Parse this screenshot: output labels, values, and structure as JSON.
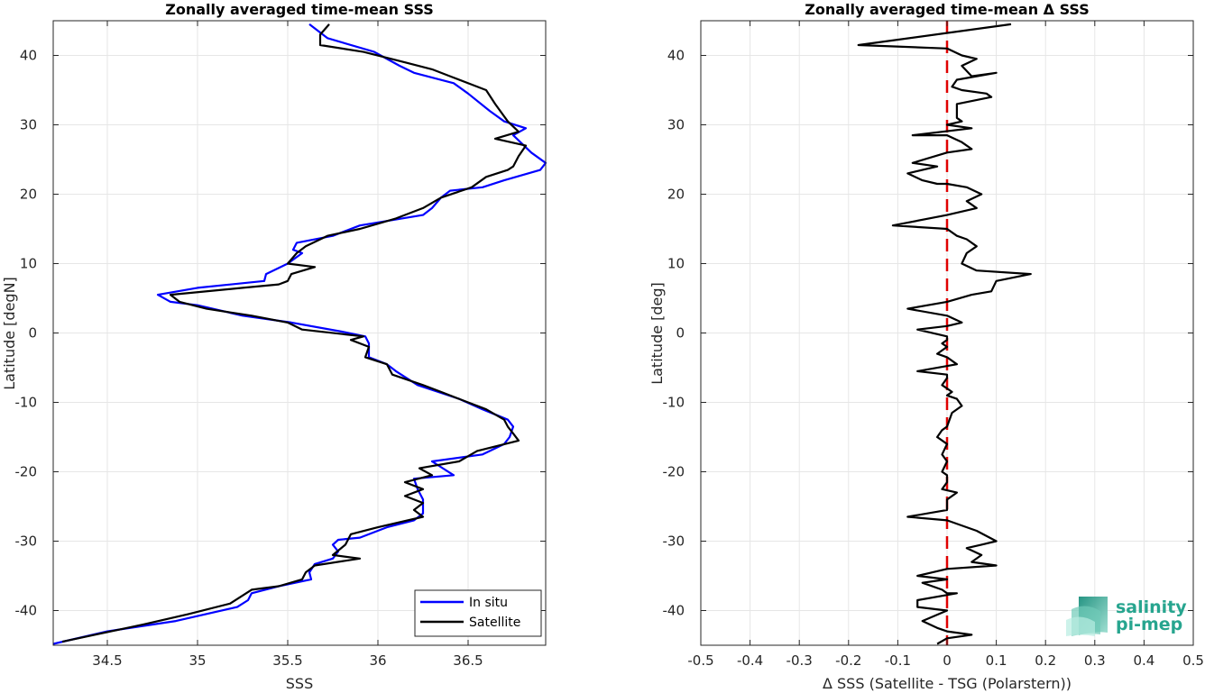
{
  "chart_data": [
    {
      "type": "line",
      "title": "Zonally averaged time-mean SSS",
      "xlabel": "SSS",
      "ylabel": "Latitude [degN]",
      "xlim": [
        34.2,
        36.93
      ],
      "ylim": [
        -45,
        45
      ],
      "xticks": [
        34.5,
        35,
        35.5,
        36,
        36.5
      ],
      "xtick_labels": [
        "34.5",
        "35",
        "35.5",
        "36",
        "36.5"
      ],
      "yticks": [
        -40,
        -30,
        -20,
        -10,
        0,
        10,
        20,
        30,
        40
      ],
      "ytick_labels": [
        "-40",
        "-30",
        "-20",
        "-10",
        "0",
        "10",
        "20",
        "30",
        "40"
      ],
      "grid": true,
      "legend": "bottom-right",
      "series": [
        {
          "name": "In situ",
          "color": "#0000ff",
          "points": [
            [
              35.62,
              44.5
            ],
            [
              35.72,
              42.5
            ],
            [
              35.98,
              40.5
            ],
            [
              36.12,
              38.5
            ],
            [
              36.2,
              37.5
            ],
            [
              36.42,
              36.0
            ],
            [
              36.5,
              34.5
            ],
            [
              36.62,
              32.0
            ],
            [
              36.7,
              30.5
            ],
            [
              36.82,
              29.5
            ],
            [
              36.75,
              28.5
            ],
            [
              36.85,
              26.0
            ],
            [
              36.93,
              24.5
            ],
            [
              36.9,
              23.5
            ],
            [
              36.7,
              22.0
            ],
            [
              36.58,
              21.0
            ],
            [
              36.4,
              20.5
            ],
            [
              36.35,
              19.5
            ],
            [
              36.3,
              18.0
            ],
            [
              36.25,
              17.0
            ],
            [
              35.9,
              15.5
            ],
            [
              35.75,
              14.0
            ],
            [
              35.55,
              13.0
            ],
            [
              35.53,
              12.0
            ],
            [
              35.58,
              11.5
            ],
            [
              35.5,
              10.0
            ],
            [
              35.38,
              8.5
            ],
            [
              35.37,
              7.5
            ],
            [
              35.0,
              6.5
            ],
            [
              34.78,
              5.5
            ],
            [
              34.85,
              4.5
            ],
            [
              35.0,
              4.0
            ],
            [
              35.25,
              2.5
            ],
            [
              35.52,
              1.5
            ],
            [
              35.8,
              0.2
            ],
            [
              35.93,
              -0.5
            ],
            [
              35.95,
              -1.5
            ],
            [
              35.95,
              -3.5
            ],
            [
              36.05,
              -4.5
            ],
            [
              36.1,
              -5.5
            ],
            [
              36.22,
              -7.5
            ],
            [
              36.45,
              -9.5
            ],
            [
              36.58,
              -11.0
            ],
            [
              36.72,
              -12.5
            ],
            [
              36.75,
              -13.5
            ],
            [
              36.73,
              -15.0
            ],
            [
              36.7,
              -16.0
            ],
            [
              36.58,
              -17.5
            ],
            [
              36.3,
              -18.5
            ],
            [
              36.42,
              -20.5
            ],
            [
              36.2,
              -21.0
            ],
            [
              36.22,
              -22.5
            ],
            [
              36.25,
              -24.0
            ],
            [
              36.25,
              -26.0
            ],
            [
              36.2,
              -27.0
            ],
            [
              36.05,
              -28.0
            ],
            [
              35.9,
              -29.5
            ],
            [
              35.78,
              -29.8
            ],
            [
              35.75,
              -30.5
            ],
            [
              35.78,
              -31.5
            ],
            [
              35.75,
              -32.5
            ],
            [
              35.65,
              -33.3
            ],
            [
              35.62,
              -34.5
            ],
            [
              35.63,
              -35.5
            ],
            [
              35.45,
              -36.5
            ],
            [
              35.3,
              -37.5
            ],
            [
              35.28,
              -38.5
            ],
            [
              35.22,
              -39.5
            ],
            [
              34.88,
              -41.5
            ],
            [
              34.5,
              -43.0
            ],
            [
              34.2,
              -44.8
            ]
          ]
        },
        {
          "name": "Satellite",
          "color": "#000000",
          "points": [
            [
              35.73,
              44.5
            ],
            [
              35.68,
              43.0
            ],
            [
              35.68,
              41.5
            ],
            [
              35.92,
              40.5
            ],
            [
              36.15,
              39.0
            ],
            [
              36.3,
              38.0
            ],
            [
              36.4,
              37.0
            ],
            [
              36.6,
              35.0
            ],
            [
              36.65,
              33.0
            ],
            [
              36.72,
              30.5
            ],
            [
              36.78,
              29.0
            ],
            [
              36.65,
              28.0
            ],
            [
              36.82,
              27.0
            ],
            [
              36.78,
              25.5
            ],
            [
              36.75,
              24.0
            ],
            [
              36.72,
              23.5
            ],
            [
              36.6,
              22.5
            ],
            [
              36.52,
              21.0
            ],
            [
              36.35,
              19.5
            ],
            [
              36.25,
              18.0
            ],
            [
              36.1,
              16.5
            ],
            [
              35.9,
              15.0
            ],
            [
              35.72,
              14.0
            ],
            [
              35.6,
              12.5
            ],
            [
              35.55,
              11.5
            ],
            [
              35.5,
              10.0
            ],
            [
              35.65,
              9.5
            ],
            [
              35.52,
              8.5
            ],
            [
              35.5,
              7.5
            ],
            [
              35.45,
              7.0
            ],
            [
              35.25,
              6.5
            ],
            [
              34.85,
              5.5
            ],
            [
              34.9,
              4.5
            ],
            [
              35.05,
              3.5
            ],
            [
              35.3,
              2.5
            ],
            [
              35.5,
              1.5
            ],
            [
              35.58,
              0.5
            ],
            [
              35.92,
              -0.5
            ],
            [
              35.85,
              -1.0
            ],
            [
              35.95,
              -2.0
            ],
            [
              35.93,
              -3.5
            ],
            [
              36.05,
              -4.5
            ],
            [
              36.08,
              -6.0
            ],
            [
              36.25,
              -7.5
            ],
            [
              36.35,
              -8.5
            ],
            [
              36.5,
              -10.0
            ],
            [
              36.6,
              -11.0
            ],
            [
              36.7,
              -12.5
            ],
            [
              36.72,
              -13.5
            ],
            [
              36.75,
              -14.5
            ],
            [
              36.78,
              -15.5
            ],
            [
              36.55,
              -17.0
            ],
            [
              36.45,
              -18.5
            ],
            [
              36.23,
              -19.5
            ],
            [
              36.3,
              -20.5
            ],
            [
              36.15,
              -21.5
            ],
            [
              36.25,
              -22.5
            ],
            [
              36.15,
              -23.5
            ],
            [
              36.25,
              -24.5
            ],
            [
              36.2,
              -25.5
            ],
            [
              36.25,
              -26.5
            ],
            [
              36.0,
              -28.0
            ],
            [
              35.85,
              -29.0
            ],
            [
              35.82,
              -30.5
            ],
            [
              35.75,
              -32.0
            ],
            [
              35.9,
              -32.5
            ],
            [
              35.65,
              -33.5
            ],
            [
              35.6,
              -34.5
            ],
            [
              35.58,
              -35.5
            ],
            [
              35.45,
              -36.5
            ],
            [
              35.3,
              -37.0
            ],
            [
              35.18,
              -39.0
            ],
            [
              34.95,
              -40.5
            ],
            [
              34.7,
              -42.0
            ],
            [
              34.25,
              -44.5
            ]
          ]
        }
      ]
    },
    {
      "type": "line",
      "title": "Zonally averaged time-mean Δ SSS",
      "xlabel": "Δ SSS (Satellite - TSG (Polarstern))",
      "ylabel": "Latitude [deg]",
      "xlim": [
        -0.5,
        0.5
      ],
      "ylim": [
        -45,
        45
      ],
      "xticks": [
        -0.5,
        -0.4,
        -0.3,
        -0.2,
        -0.1,
        0,
        0.1,
        0.2,
        0.3,
        0.4,
        0.5
      ],
      "xtick_labels": [
        "-0.5",
        "-0.4",
        "-0.3",
        "-0.2",
        "-0.1",
        "0",
        "0.1",
        "0.2",
        "0.3",
        "0.4",
        "0.5"
      ],
      "yticks": [
        -40,
        -30,
        -20,
        -10,
        0,
        10,
        20,
        30,
        40
      ],
      "ytick_labels": [
        "-40",
        "-30",
        "-20",
        "-10",
        "0",
        "10",
        "20",
        "30",
        "40"
      ],
      "grid": true,
      "reference_line": {
        "x": 0,
        "color": "#e00000",
        "style": "dashed"
      },
      "series": [
        {
          "color": "#000000",
          "points": [
            [
              0.13,
              44.5
            ],
            [
              -0.18,
              41.5
            ],
            [
              0.0,
              41.0
            ],
            [
              0.03,
              40.0
            ],
            [
              0.06,
              39.5
            ],
            [
              0.03,
              38.5
            ],
            [
              0.05,
              37.0
            ],
            [
              0.1,
              37.5
            ],
            [
              0.02,
              36.5
            ],
            [
              0.01,
              35.5
            ],
            [
              0.03,
              35.0
            ],
            [
              0.08,
              34.5
            ],
            [
              0.09,
              34.0
            ],
            [
              0.02,
              33.0
            ],
            [
              0.02,
              31.0
            ],
            [
              0.03,
              30.5
            ],
            [
              0.0,
              30.0
            ],
            [
              0.05,
              29.5
            ],
            [
              -0.07,
              28.5
            ],
            [
              0.0,
              28.5
            ],
            [
              0.03,
              27.5
            ],
            [
              0.05,
              26.5
            ],
            [
              0.0,
              26.0
            ],
            [
              -0.07,
              24.5
            ],
            [
              -0.02,
              24.0
            ],
            [
              -0.08,
              23.0
            ],
            [
              -0.05,
              22.0
            ],
            [
              -0.02,
              21.5
            ],
            [
              0.0,
              21.5
            ],
            [
              0.04,
              21.0
            ],
            [
              0.07,
              20.0
            ],
            [
              0.04,
              19.0
            ],
            [
              0.06,
              18.0
            ],
            [
              0.0,
              17.0
            ],
            [
              -0.11,
              15.5
            ],
            [
              0.0,
              15.0
            ],
            [
              0.02,
              14.0
            ],
            [
              0.04,
              13.5
            ],
            [
              0.06,
              12.5
            ],
            [
              0.04,
              11.5
            ],
            [
              0.03,
              10.0
            ],
            [
              0.06,
              9.0
            ],
            [
              0.17,
              8.5
            ],
            [
              0.1,
              7.5
            ],
            [
              0.09,
              6.0
            ],
            [
              0.05,
              5.5
            ],
            [
              0.0,
              4.5
            ],
            [
              -0.08,
              3.5
            ],
            [
              0.0,
              2.5
            ],
            [
              0.03,
              1.5
            ],
            [
              0.0,
              1.0
            ],
            [
              -0.06,
              0.5
            ],
            [
              0.0,
              -0.5
            ],
            [
              0.0,
              -1.0
            ],
            [
              -0.01,
              -1.5
            ],
            [
              0.0,
              -2.0
            ],
            [
              -0.02,
              -3.0
            ],
            [
              0.0,
              -3.5
            ],
            [
              0.02,
              -4.5
            ],
            [
              -0.06,
              -5.5
            ],
            [
              0.0,
              -6.0
            ],
            [
              0.0,
              -6.5
            ],
            [
              -0.01,
              -7.5
            ],
            [
              0.01,
              -8.5
            ],
            [
              0.0,
              -9.0
            ],
            [
              0.02,
              -9.5
            ],
            [
              0.03,
              -10.5
            ],
            [
              0.01,
              -11.5
            ],
            [
              0.0,
              -13.5
            ],
            [
              -0.01,
              -14.0
            ],
            [
              -0.02,
              -15.0
            ],
            [
              0.0,
              -16.0
            ],
            [
              -0.01,
              -17.5
            ],
            [
              0.0,
              -18.5
            ],
            [
              -0.01,
              -20.0
            ],
            [
              0.0,
              -20.5
            ],
            [
              0.0,
              -21.5
            ],
            [
              -0.01,
              -22.5
            ],
            [
              0.02,
              -23.0
            ],
            [
              0.0,
              -24.0
            ],
            [
              0.0,
              -25.5
            ],
            [
              -0.08,
              -26.5
            ],
            [
              0.0,
              -27.0
            ],
            [
              0.06,
              -28.5
            ],
            [
              0.1,
              -30.0
            ],
            [
              0.07,
              -30.5
            ],
            [
              0.04,
              -31.0
            ],
            [
              0.07,
              -32.0
            ],
            [
              0.05,
              -33.0
            ],
            [
              0.1,
              -33.5
            ],
            [
              0.0,
              -34.0
            ],
            [
              -0.06,
              -35.0
            ],
            [
              0.0,
              -35.5
            ],
            [
              -0.05,
              -36.0
            ],
            [
              -0.01,
              -37.0
            ],
            [
              0.0,
              -37.5
            ],
            [
              0.02,
              -37.5
            ],
            [
              -0.06,
              -38.5
            ],
            [
              -0.06,
              -39.5
            ],
            [
              0.0,
              -40.0
            ],
            [
              -0.05,
              -41.5
            ],
            [
              -0.02,
              -42.5
            ],
            [
              0.0,
              -43.0
            ],
            [
              0.05,
              -43.5
            ],
            [
              0.0,
              -44.0
            ],
            [
              -0.02,
              -44.8
            ]
          ]
        }
      ]
    }
  ],
  "legend": {
    "entries": [
      {
        "label": "In situ",
        "color": "#0000ff"
      },
      {
        "label": "Satellite",
        "color": "#000000"
      }
    ]
  },
  "logo": {
    "line1": "salinity",
    "line2": "pi-mep",
    "color": "#27a58f",
    "icon": "salinity-wave-logo-icon"
  }
}
